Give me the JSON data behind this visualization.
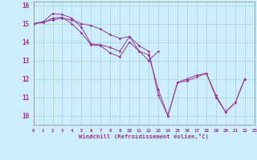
{
  "xlabel": "Windchill (Refroidissement éolien,°C)",
  "background_color": "#cceeff",
  "grid_color": "#aaddcc",
  "line_color": "#993399",
  "xmin": 0,
  "xmax": 23,
  "ymin": 9.5,
  "ymax": 16.2,
  "yticks": [
    10,
    11,
    12,
    13,
    14,
    15,
    16
  ],
  "series": [
    [
      15.0,
      15.1,
      15.2,
      15.3,
      15.2,
      15.0,
      14.9,
      14.7,
      14.4,
      14.2,
      14.3,
      13.5,
      13.3,
      11.4,
      10.0,
      11.8,
      11.9,
      12.1,
      12.3,
      11.1,
      10.2,
      10.7,
      12.0
    ],
    [
      15.0,
      15.1,
      15.55,
      15.5,
      15.3,
      14.8,
      13.9,
      13.85,
      13.7,
      13.5,
      14.3,
      13.8,
      13.5,
      11.1,
      10.0,
      11.8,
      12.0,
      12.2,
      12.3,
      11.0,
      10.2,
      10.7,
      12.0
    ],
    [
      15.0,
      15.05,
      15.3,
      15.35,
      15.0,
      14.5,
      13.85,
      13.8,
      13.4,
      13.2,
      14.0,
      13.5,
      13.0,
      13.5,
      null,
      null,
      null,
      null,
      null,
      null,
      null,
      null,
      null
    ]
  ]
}
